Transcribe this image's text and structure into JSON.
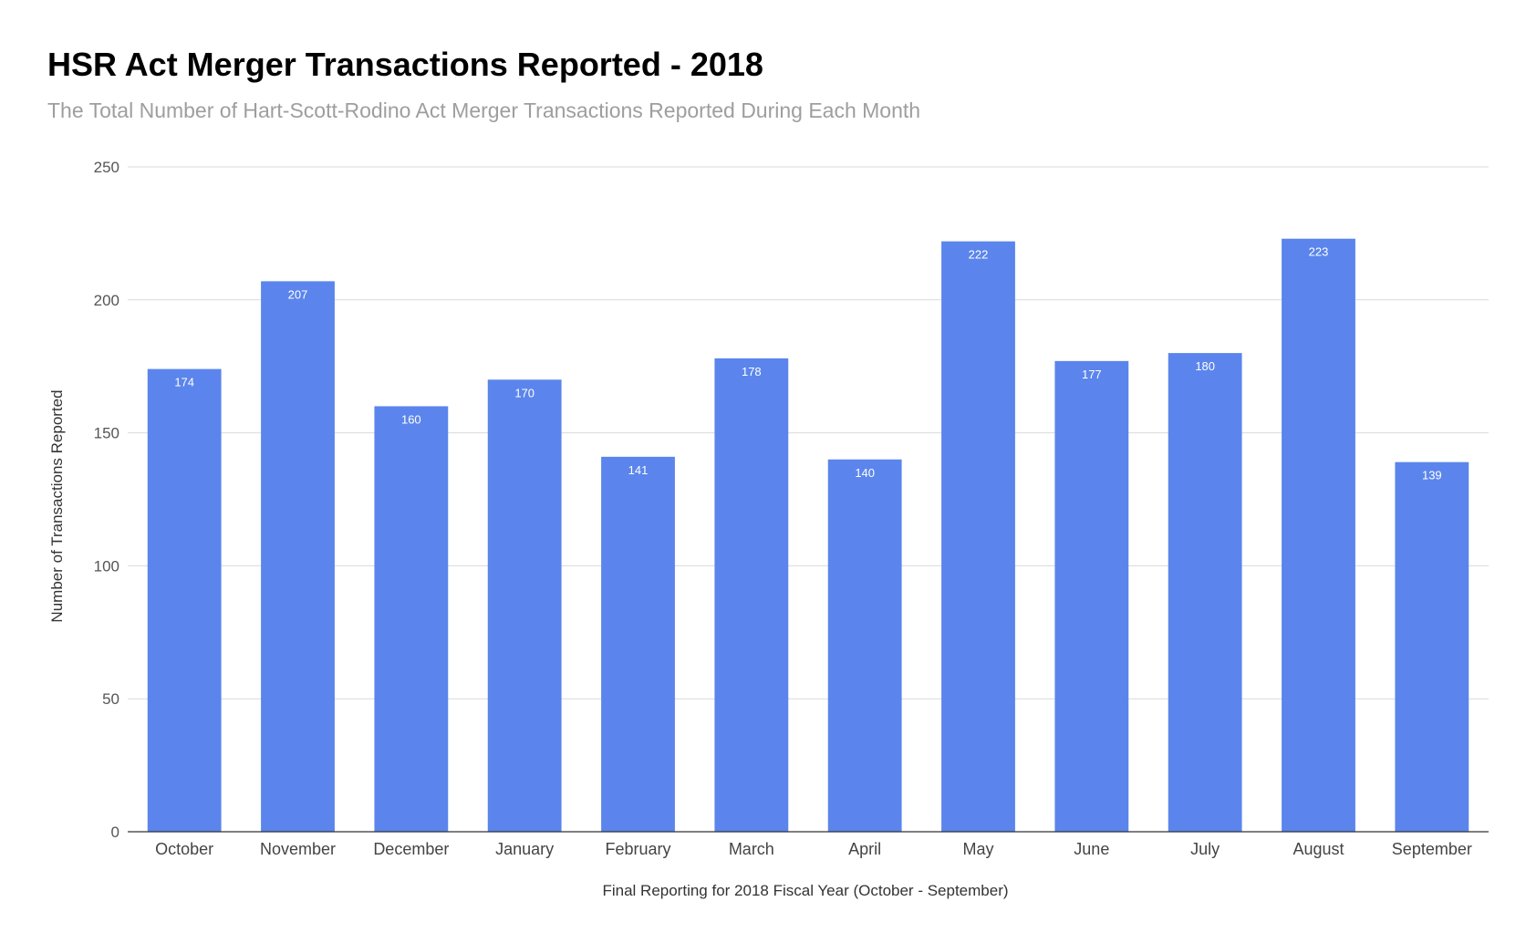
{
  "chart_data": {
    "type": "bar",
    "title": "HSR Act Merger Transactions Reported - 2018",
    "subtitle": "The Total Number of Hart-Scott-Rodino Act Merger Transactions Reported During Each Month",
    "xlabel": "Final Reporting for 2018 Fiscal Year (October - September)",
    "ylabel": "Number of Transactions Reported",
    "categories": [
      "October",
      "November",
      "December",
      "January",
      "February",
      "March",
      "April",
      "May",
      "June",
      "July",
      "August",
      "September"
    ],
    "values": [
      174,
      207,
      160,
      170,
      141,
      178,
      140,
      222,
      177,
      180,
      223,
      139
    ],
    "ylim": [
      0,
      250
    ],
    "yticks": [
      0,
      50,
      100,
      150,
      200,
      250
    ],
    "grid": true,
    "legend": "none",
    "bar_color": "#5b85ec",
    "data_labels": true
  }
}
